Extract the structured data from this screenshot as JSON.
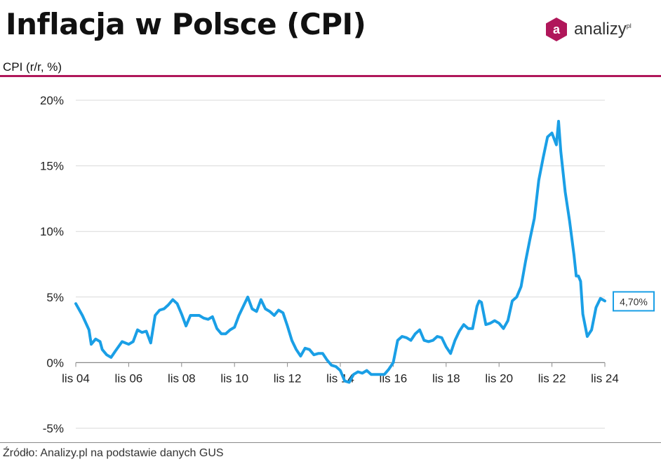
{
  "header": {
    "title": "Inflacja w Polsce (CPI)",
    "subtitle": "CPI (r/r, %)",
    "logo_letter": "a",
    "logo_text": "analizy",
    "logo_sup": "pl"
  },
  "footer": {
    "source": "Źródło: Analizy.pl na podstawie danych GUS"
  },
  "colors": {
    "brand": "#b0175a",
    "line": "#1a9fe6",
    "grid": "#d9d9d9",
    "axis": "#888888"
  },
  "chart_data": {
    "type": "line",
    "title": "Inflacja w Polsce (CPI)",
    "ylabel": "CPI (r/r, %)",
    "ylim": [
      -5,
      20
    ],
    "yticks": [
      20,
      15,
      10,
      5,
      0,
      -5
    ],
    "ytick_labels": [
      "20%",
      "15%",
      "10%",
      "5%",
      "0%",
      "-5%"
    ],
    "xticks": [
      "2004-11",
      "2006-11",
      "2008-11",
      "2010-11",
      "2012-11",
      "2014-11",
      "2016-11",
      "2018-11",
      "2020-11",
      "2022-11",
      "2024-11"
    ],
    "xtick_labels": [
      "lis 04",
      "lis 06",
      "lis 08",
      "lis 10",
      "lis 12",
      "lis 14",
      "lis 16",
      "lis 18",
      "lis 20",
      "lis 22",
      "lis 24"
    ],
    "grid": true,
    "last_value_label": "4,70%",
    "series": [
      {
        "name": "CPI",
        "points": [
          [
            "2004-11",
            4.5
          ],
          [
            "2005-02",
            3.6
          ],
          [
            "2005-05",
            2.5
          ],
          [
            "2005-06",
            1.4
          ],
          [
            "2005-08",
            1.8
          ],
          [
            "2005-10",
            1.6
          ],
          [
            "2005-11",
            1.0
          ],
          [
            "2006-01",
            0.6
          ],
          [
            "2006-03",
            0.4
          ],
          [
            "2006-05",
            0.9
          ],
          [
            "2006-08",
            1.6
          ],
          [
            "2006-11",
            1.4
          ],
          [
            "2007-01",
            1.6
          ],
          [
            "2007-03",
            2.5
          ],
          [
            "2007-05",
            2.3
          ],
          [
            "2007-07",
            2.4
          ],
          [
            "2007-09",
            1.5
          ],
          [
            "2007-11",
            3.6
          ],
          [
            "2008-01",
            4.0
          ],
          [
            "2008-03",
            4.1
          ],
          [
            "2008-05",
            4.4
          ],
          [
            "2008-07",
            4.8
          ],
          [
            "2008-09",
            4.5
          ],
          [
            "2008-11",
            3.7
          ],
          [
            "2009-01",
            2.8
          ],
          [
            "2009-03",
            3.6
          ],
          [
            "2009-05",
            3.6
          ],
          [
            "2009-07",
            3.6
          ],
          [
            "2009-09",
            3.4
          ],
          [
            "2009-11",
            3.3
          ],
          [
            "2010-01",
            3.5
          ],
          [
            "2010-03",
            2.6
          ],
          [
            "2010-05",
            2.2
          ],
          [
            "2010-07",
            2.2
          ],
          [
            "2010-09",
            2.5
          ],
          [
            "2010-11",
            2.7
          ],
          [
            "2011-01",
            3.6
          ],
          [
            "2011-03",
            4.3
          ],
          [
            "2011-05",
            5.0
          ],
          [
            "2011-07",
            4.1
          ],
          [
            "2011-09",
            3.9
          ],
          [
            "2011-11",
            4.8
          ],
          [
            "2012-01",
            4.1
          ],
          [
            "2012-03",
            3.9
          ],
          [
            "2012-05",
            3.6
          ],
          [
            "2012-07",
            4.0
          ],
          [
            "2012-09",
            3.8
          ],
          [
            "2012-11",
            2.8
          ],
          [
            "2013-01",
            1.7
          ],
          [
            "2013-03",
            1.0
          ],
          [
            "2013-05",
            0.5
          ],
          [
            "2013-07",
            1.1
          ],
          [
            "2013-09",
            1.0
          ],
          [
            "2013-11",
            0.6
          ],
          [
            "2014-01",
            0.7
          ],
          [
            "2014-03",
            0.7
          ],
          [
            "2014-05",
            0.2
          ],
          [
            "2014-07",
            -0.2
          ],
          [
            "2014-09",
            -0.3
          ],
          [
            "2014-11",
            -0.6
          ],
          [
            "2015-01",
            -1.4
          ],
          [
            "2015-03",
            -1.5
          ],
          [
            "2015-05",
            -0.9
          ],
          [
            "2015-07",
            -0.7
          ],
          [
            "2015-09",
            -0.8
          ],
          [
            "2015-11",
            -0.6
          ],
          [
            "2016-01",
            -0.9
          ],
          [
            "2016-03",
            -0.9
          ],
          [
            "2016-05",
            -0.9
          ],
          [
            "2016-07",
            -0.9
          ],
          [
            "2016-09",
            -0.5
          ],
          [
            "2016-11",
            0.0
          ],
          [
            "2017-01",
            1.7
          ],
          [
            "2017-03",
            2.0
          ],
          [
            "2017-05",
            1.9
          ],
          [
            "2017-07",
            1.7
          ],
          [
            "2017-09",
            2.2
          ],
          [
            "2017-11",
            2.5
          ],
          [
            "2018-01",
            1.7
          ],
          [
            "2018-03",
            1.6
          ],
          [
            "2018-05",
            1.7
          ],
          [
            "2018-07",
            2.0
          ],
          [
            "2018-09",
            1.9
          ],
          [
            "2018-11",
            1.2
          ],
          [
            "2019-01",
            0.7
          ],
          [
            "2019-03",
            1.7
          ],
          [
            "2019-05",
            2.4
          ],
          [
            "2019-07",
            2.9
          ],
          [
            "2019-09",
            2.6
          ],
          [
            "2019-11",
            2.6
          ],
          [
            "2020-01",
            4.3
          ],
          [
            "2020-02",
            4.7
          ],
          [
            "2020-03",
            4.6
          ],
          [
            "2020-05",
            2.9
          ],
          [
            "2020-07",
            3.0
          ],
          [
            "2020-09",
            3.2
          ],
          [
            "2020-11",
            3.0
          ],
          [
            "2021-01",
            2.6
          ],
          [
            "2021-03",
            3.2
          ],
          [
            "2021-05",
            4.7
          ],
          [
            "2021-07",
            5.0
          ],
          [
            "2021-09",
            5.8
          ],
          [
            "2021-11",
            7.7
          ],
          [
            "2022-01",
            9.4
          ],
          [
            "2022-03",
            11.0
          ],
          [
            "2022-05",
            13.9
          ],
          [
            "2022-07",
            15.6
          ],
          [
            "2022-09",
            17.2
          ],
          [
            "2022-11",
            17.5
          ],
          [
            "2023-01",
            16.6
          ],
          [
            "2023-02",
            18.4
          ],
          [
            "2023-03",
            16.1
          ],
          [
            "2023-05",
            13.0
          ],
          [
            "2023-07",
            10.8
          ],
          [
            "2023-09",
            8.2
          ],
          [
            "2023-10",
            6.6
          ],
          [
            "2023-11",
            6.6
          ],
          [
            "2023-12",
            6.2
          ],
          [
            "2024-01",
            3.7
          ],
          [
            "2024-03",
            2.0
          ],
          [
            "2024-05",
            2.5
          ],
          [
            "2024-07",
            4.2
          ],
          [
            "2024-09",
            4.9
          ],
          [
            "2024-11",
            4.7
          ]
        ]
      }
    ]
  }
}
